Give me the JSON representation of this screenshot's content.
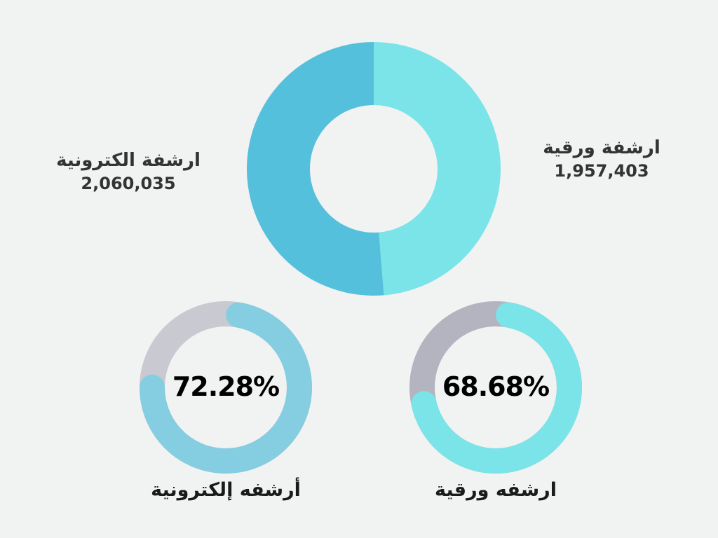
{
  "chart_data": [
    {
      "type": "pie",
      "title": "",
      "categories": [
        "ارشفة ورقية",
        "ارشفة الكترونية"
      ],
      "values": [
        1957403,
        2060035
      ],
      "value_labels": [
        "1,957,403",
        "2,060,035"
      ],
      "colors": [
        "#7ae4e8",
        "#55c0dc"
      ]
    },
    {
      "type": "pie",
      "title": "أرشفه إلكترونية",
      "value": 72.28,
      "value_label": "72.28%",
      "colors": {
        "filled": "#85cde0",
        "remaining": "#c9c9d1"
      }
    },
    {
      "type": "pie",
      "title": "ارشفه ورقية",
      "value": 68.68,
      "value_label": "68.68%",
      "colors": {
        "filled": "#7ae4e8",
        "remaining": "#b4b4c0"
      }
    }
  ],
  "colors": {
    "background": "#f1f2f2",
    "label_text": "#333333"
  }
}
